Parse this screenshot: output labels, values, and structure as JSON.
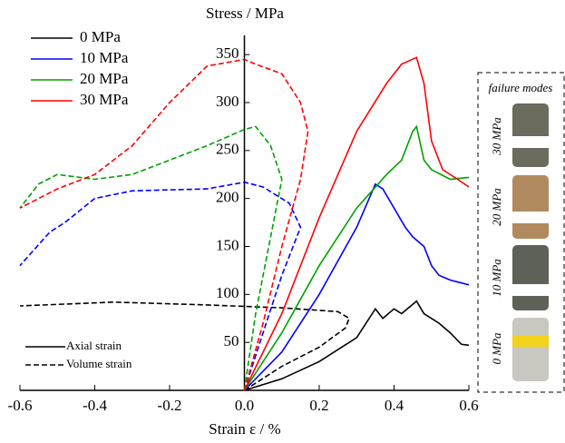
{
  "chart_data": {
    "type": "line",
    "ylabel": "Stress / MPa",
    "xlabel": "Strain  ε / %",
    "xlim": [
      -0.6,
      0.6
    ],
    "ylim": [
      0,
      370
    ],
    "xticks": [
      -0.6,
      -0.4,
      -0.2,
      {
        "value": 0,
        "label": "0.0"
      },
      0.2,
      0.4,
      0.6
    ],
    "yticks": [
      50,
      100,
      150,
      200,
      250,
      300,
      350
    ],
    "series": [
      {
        "name": "0 MPa",
        "color": "#000000",
        "axial": {
          "x": [
            0,
            0.1,
            0.2,
            0.3,
            0.35,
            0.37,
            0.4,
            0.42,
            0.46,
            0.48,
            0.52,
            0.55,
            0.58,
            0.6
          ],
          "values": [
            0,
            12,
            30,
            55,
            85,
            75,
            85,
            80,
            93,
            80,
            70,
            60,
            48,
            47
          ]
        },
        "volume": {
          "x": [
            0,
            0.1,
            0.2,
            0.27,
            0.28,
            0.25,
            0.1,
            -0.1,
            -0.35,
            -0.6
          ],
          "values": [
            0,
            25,
            45,
            65,
            75,
            82,
            86,
            89,
            92,
            88
          ]
        }
      },
      {
        "name": "10 MPa",
        "color": "#0000ff",
        "axial": {
          "x": [
            0,
            0.1,
            0.2,
            0.3,
            0.35,
            0.37,
            0.4,
            0.43,
            0.45,
            0.48,
            0.5,
            0.52,
            0.55,
            0.6
          ],
          "values": [
            0,
            40,
            100,
            170,
            215,
            210,
            190,
            170,
            160,
            150,
            130,
            120,
            115,
            110
          ]
        },
        "volume": {
          "x": [
            0,
            0.05,
            0.1,
            0.15,
            0.12,
            0.05,
            0,
            -0.1,
            -0.3,
            -0.4,
            -0.48,
            -0.52,
            -0.6
          ],
          "values": [
            0,
            60,
            120,
            170,
            195,
            212,
            217,
            210,
            208,
            200,
            175,
            165,
            130
          ]
        }
      },
      {
        "name": "20 MPa",
        "color": "#00a000",
        "axial": {
          "x": [
            0,
            0.1,
            0.2,
            0.3,
            0.38,
            0.42,
            0.45,
            0.46,
            0.48,
            0.5,
            0.55,
            0.6
          ],
          "values": [
            0,
            60,
            130,
            190,
            225,
            240,
            270,
            275,
            240,
            230,
            220,
            222
          ]
        },
        "volume": {
          "x": [
            0,
            0.03,
            0.07,
            0.1,
            0.07,
            0.03,
            0,
            -0.1,
            -0.2,
            -0.3,
            -0.4,
            -0.5,
            -0.55,
            -0.6
          ],
          "values": [
            0,
            80,
            160,
            220,
            255,
            275,
            272,
            255,
            240,
            225,
            220,
            225,
            215,
            190
          ]
        }
      },
      {
        "name": "30 MPa",
        "color": "#ff0000",
        "axial": {
          "x": [
            0,
            0.1,
            0.2,
            0.3,
            0.38,
            0.42,
            0.46,
            0.48,
            0.5,
            0.53,
            0.57,
            0.6
          ],
          "values": [
            0,
            80,
            180,
            270,
            320,
            340,
            347,
            320,
            260,
            230,
            220,
            212
          ]
        },
        "volume": {
          "x": [
            0,
            0.05,
            0.1,
            0.15,
            0.17,
            0.15,
            0.1,
            0.03,
            0,
            -0.1,
            -0.2,
            -0.3,
            -0.4,
            -0.5,
            -0.55,
            -0.6
          ],
          "values": [
            0,
            70,
            150,
            220,
            270,
            300,
            330,
            340,
            345,
            338,
            300,
            255,
            225,
            210,
            200,
            190
          ]
        }
      }
    ],
    "line_styles": [
      {
        "name": "Axial strain",
        "dash": "solid"
      },
      {
        "name": "Volume strain",
        "dash": "dashed"
      }
    ],
    "panel": {
      "title": "failure modes",
      "labels": [
        "30 MPa",
        "20 MPa",
        "10 MPa",
        "0 MPa"
      ]
    }
  }
}
